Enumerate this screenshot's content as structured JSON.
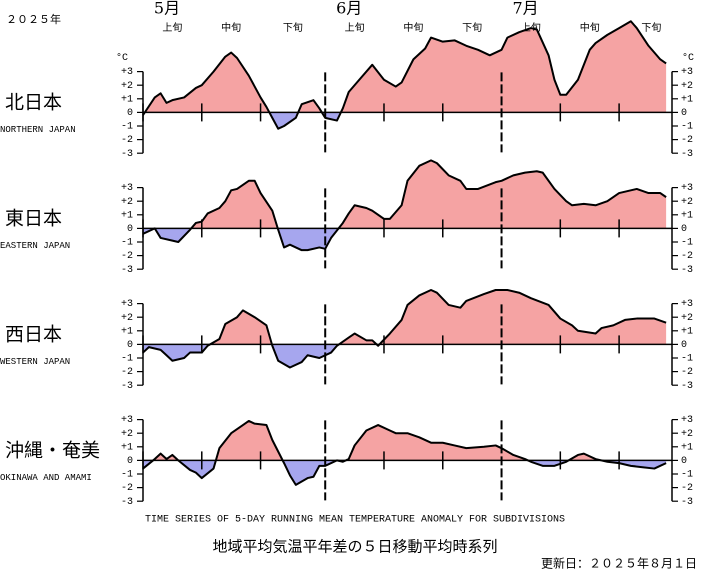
{
  "header": {
    "year": "２０２５年",
    "months": [
      "5月",
      "6月",
      "7月"
    ],
    "periods": [
      "上旬",
      "中旬",
      "下旬",
      "上旬",
      "中旬",
      "下旬",
      "上旬",
      "中旬",
      "下旬"
    ],
    "unit_left": "°C",
    "unit_right": "°C",
    "caption_en": "TIME SERIES OF 5-DAY RUNNING MEAN TEMPERATURE ANOMALY FOR SUBDIVISIONS",
    "caption_ja": "地域平均気温平年差の５日移動平均時系列",
    "updated": "更新日：２０２５年８月１日"
  },
  "chart_data": [
    {
      "type": "area",
      "title": "北日本",
      "subtitle": "NORTHERN JAPAN",
      "x": [
        0,
        2,
        3,
        4,
        5,
        7,
        9,
        10,
        12,
        14,
        15,
        16,
        18,
        20,
        21,
        22,
        23,
        24,
        26,
        27,
        29,
        30,
        31,
        33,
        34,
        35,
        37,
        39,
        41,
        43,
        44,
        46,
        48,
        49,
        51,
        53,
        55,
        57,
        59,
        61,
        62,
        64,
        66,
        67,
        69,
        70,
        71,
        72,
        74,
        76,
        77,
        79,
        81,
        83,
        84,
        86,
        88,
        89
      ],
      "values": [
        -0.2,
        1.1,
        1.4,
        0.7,
        0.9,
        1.1,
        1.8,
        2.0,
        3.0,
        4.1,
        4.4,
        4.0,
        2.7,
        1.1,
        0.4,
        -0.4,
        -1.2,
        -1.0,
        -0.4,
        0.6,
        0.9,
        0.3,
        -0.4,
        -0.6,
        0.3,
        1.5,
        2.5,
        3.5,
        2.4,
        1.9,
        2.2,
        3.9,
        4.7,
        5.5,
        5.2,
        5.3,
        4.9,
        4.6,
        4.2,
        4.6,
        5.5,
        5.9,
        6.2,
        6.1,
        4.2,
        2.4,
        1.3,
        1.3,
        2.4,
        4.6,
        5.1,
        5.7,
        6.2,
        6.7,
        6.2,
        4.9,
        3.9,
        3.6
      ],
      "xlim": [
        0,
        90
      ],
      "xticks": [
        0,
        10,
        20,
        31,
        41,
        51,
        61,
        71,
        81
      ],
      "ylim": [
        -3.5,
        7
      ],
      "yticks": [
        {
          "value": 3,
          "label": "+3"
        },
        {
          "value": 2,
          "label": "+2"
        },
        {
          "value": 1,
          "label": "+1"
        },
        0,
        -1,
        -2,
        -3
      ],
      "colors": {
        "positive": "#f5a3a3",
        "negative": "#a6a6ee"
      }
    },
    {
      "type": "area",
      "title": "東日本",
      "subtitle": "EASTERN JAPAN",
      "x": [
        0,
        2,
        3,
        5,
        6,
        8,
        9,
        10,
        11,
        13,
        14,
        15,
        16,
        18,
        19,
        20,
        22,
        23,
        24,
        25,
        27,
        28,
        30,
        31,
        32,
        34,
        35,
        36,
        38,
        39,
        41,
        42,
        44,
        45,
        47,
        49,
        50,
        52,
        54,
        55,
        57,
        60,
        61,
        63,
        65,
        67,
        68,
        70,
        72,
        73,
        75,
        77,
        79,
        81,
        83,
        84,
        86,
        88,
        89
      ],
      "values": [
        -0.4,
        0,
        -0.7,
        -0.9,
        -1.0,
        -0.1,
        0.4,
        0.5,
        1.1,
        1.5,
        2.0,
        2.8,
        2.9,
        3.5,
        3.5,
        2.6,
        1.3,
        -0.1,
        -1.4,
        -1.2,
        -1.6,
        -1.6,
        -1.4,
        -1.5,
        -0.7,
        0.4,
        1.1,
        1.7,
        1.5,
        1.3,
        0.7,
        0.7,
        1.7,
        3.5,
        4.6,
        5.0,
        4.8,
        3.9,
        3.5,
        2.9,
        2.9,
        3.4,
        3.5,
        3.9,
        4.1,
        4.2,
        4.1,
        2.9,
        2.0,
        1.7,
        1.8,
        1.7,
        2.0,
        2.6,
        2.8,
        2.9,
        2.6,
        2.6,
        2.3
      ],
      "xlim": [
        0,
        90
      ],
      "xticks": [
        0,
        10,
        20,
        31,
        41,
        51,
        61,
        71,
        81
      ],
      "ylim": [
        -3.5,
        5.5
      ],
      "yticks": [
        {
          "value": 3,
          "label": "+3"
        },
        {
          "value": 2,
          "label": "+2"
        },
        {
          "value": 1,
          "label": "+1"
        },
        0,
        -1,
        -2,
        -3
      ],
      "colors": {
        "positive": "#f5a3a3",
        "negative": "#a6a6ee"
      }
    },
    {
      "type": "area",
      "title": "西日本",
      "subtitle": "WESTERN JAPAN",
      "x": [
        0,
        1,
        3,
        4,
        5,
        7,
        8,
        10,
        11,
        13,
        14,
        16,
        17,
        19,
        21,
        22,
        23,
        25,
        27,
        28,
        30,
        32,
        33,
        35,
        36,
        38,
        39,
        40,
        42,
        44,
        45,
        47,
        49,
        50,
        52,
        54,
        55,
        58,
        60,
        62,
        64,
        66,
        69,
        71,
        73,
        74,
        77,
        78,
        80,
        82,
        84,
        87,
        89
      ],
      "values": [
        -0.6,
        -0.2,
        -0.4,
        -0.8,
        -1.2,
        -1.0,
        -0.6,
        -0.6,
        -0.1,
        0.4,
        1.5,
        2.0,
        2.5,
        2.0,
        1.4,
        -0.1,
        -1.2,
        -1.7,
        -1.3,
        -0.8,
        -1.0,
        -0.6,
        -0.1,
        0.5,
        0.8,
        0.3,
        0.3,
        -0.1,
        0.8,
        1.8,
        2.9,
        3.6,
        4.0,
        3.8,
        2.9,
        2.7,
        3.2,
        3.7,
        4.0,
        4.0,
        3.8,
        3.4,
        2.9,
        1.9,
        1.4,
        1.0,
        0.8,
        1.2,
        1.4,
        1.8,
        1.9,
        1.9,
        1.6
      ],
      "xlim": [
        0,
        90
      ],
      "xticks": [
        0,
        10,
        20,
        31,
        41,
        51,
        61,
        71,
        81
      ],
      "ylim": [
        -3.5,
        4.5
      ],
      "yticks": [
        {
          "value": 3,
          "label": "+3"
        },
        {
          "value": 2,
          "label": "+2"
        },
        {
          "value": 1,
          "label": "+1"
        },
        0,
        -1,
        -2,
        -3
      ],
      "colors": {
        "positive": "#f5a3a3",
        "negative": "#a6a6ee"
      }
    },
    {
      "type": "area",
      "title": "沖縄・奄美",
      "subtitle": "OKINAWA AND AMAMI",
      "x": [
        0,
        2,
        3,
        4,
        5,
        6,
        8,
        9,
        10,
        12,
        13,
        15,
        17,
        18,
        19,
        21,
        22,
        24,
        25,
        26,
        28,
        29,
        30,
        31,
        33,
        34,
        35,
        36,
        38,
        40,
        42,
        43,
        45,
        47,
        49,
        51,
        53,
        55,
        58,
        60,
        61,
        63,
        65,
        66,
        68,
        70,
        72,
        74,
        75,
        77,
        79,
        81,
        83,
        85,
        87,
        88,
        89
      ],
      "values": [
        -0.6,
        0.1,
        0.5,
        0.1,
        0.4,
        0,
        -0.7,
        -0.9,
        -1.3,
        -0.6,
        0.9,
        2.0,
        2.6,
        2.9,
        2.7,
        2.6,
        1.5,
        -0.2,
        -1.1,
        -1.8,
        -1.3,
        -1.2,
        -0.4,
        -0.4,
        0,
        -0.1,
        0.1,
        1.1,
        2.2,
        2.6,
        2.2,
        2.0,
        2.0,
        1.7,
        1.3,
        1.3,
        1.1,
        0.9,
        1.0,
        1.1,
        0.9,
        0.4,
        0.1,
        -0.1,
        -0.4,
        -0.4,
        -0.1,
        0.4,
        0.5,
        0.1,
        -0.1,
        -0.2,
        -0.4,
        -0.5,
        -0.6,
        -0.4,
        -0.2
      ],
      "xlim": [
        0,
        90
      ],
      "xticks": [
        0,
        10,
        20,
        31,
        41,
        51,
        61,
        71,
        81
      ],
      "ylim": [
        -3.5,
        3.5
      ],
      "yticks": [
        {
          "value": 3,
          "label": "+3"
        },
        {
          "value": 2,
          "label": "+2"
        },
        {
          "value": 1,
          "label": "+1"
        },
        0,
        -1,
        -2,
        -3
      ],
      "colors": {
        "positive": "#f5a3a3",
        "negative": "#a6a6ee"
      }
    }
  ]
}
